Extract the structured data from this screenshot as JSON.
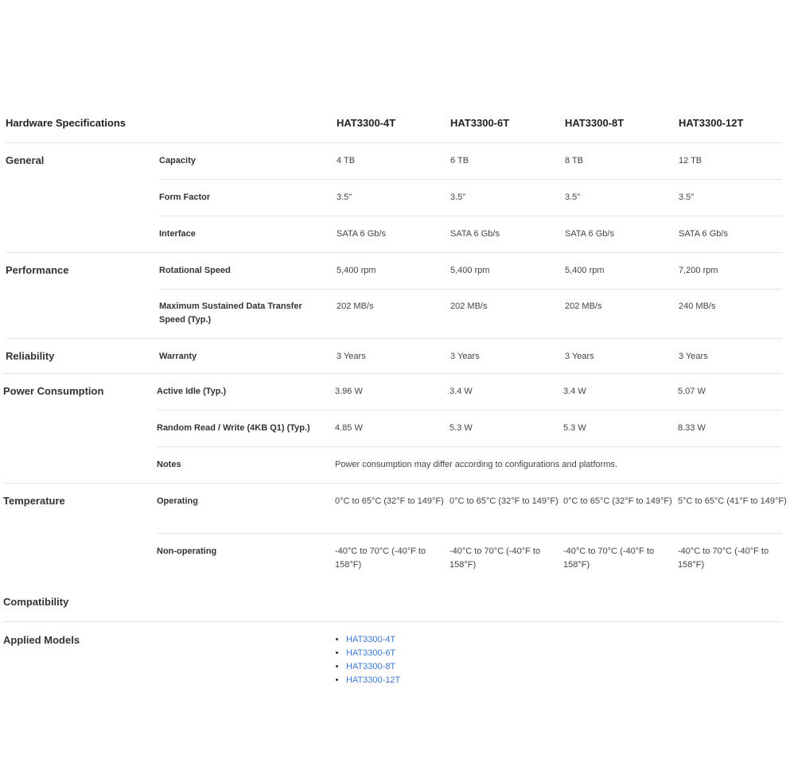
{
  "header": {
    "title": "Hardware Specifications",
    "models": [
      "HAT3300-4T",
      "HAT3300-6T",
      "HAT3300-8T",
      "HAT3300-12T"
    ]
  },
  "sections": [
    {
      "name": "General",
      "rows": [
        {
          "label": "Capacity",
          "values": [
            "4 TB",
            "6 TB",
            "8 TB",
            "12 TB"
          ]
        },
        {
          "label": "Form Factor",
          "values": [
            "3.5\"",
            "3.5\"",
            "3.5\"",
            "3.5\""
          ]
        },
        {
          "label": "Interface",
          "values": [
            "SATA 6 Gb/s",
            "SATA 6 Gb/s",
            "SATA 6 Gb/s",
            "SATA 6 Gb/s"
          ]
        }
      ]
    },
    {
      "name": "Performance",
      "rows": [
        {
          "label": "Rotational Speed",
          "values": [
            "5,400 rpm",
            "5,400 rpm",
            "5,400 rpm",
            "7,200 rpm"
          ]
        },
        {
          "label": "Maximum Sustained Data Transfer Speed (Typ.)",
          "values": [
            "202 MB/s",
            "202 MB/s",
            "202 MB/s",
            "240 MB/s"
          ]
        }
      ]
    },
    {
      "name": "Reliability",
      "rows": [
        {
          "label": "Warranty",
          "values": [
            "3 Years",
            "3 Years",
            "3 Years",
            "3 Years"
          ]
        }
      ]
    },
    {
      "name": "Power Consumption",
      "rows": [
        {
          "label": "Active Idle (Typ.)",
          "values": [
            "3.96 W",
            "3.4 W",
            "3.4 W",
            "5.07 W"
          ]
        },
        {
          "label": "Random Read / Write (4KB Q1) (Typ.)",
          "values": [
            "4.85 W",
            "5.3 W",
            "5.3 W",
            "8.33 W"
          ]
        },
        {
          "label": "Notes",
          "note": "Power consumption may differ according to configurations and platforms."
        }
      ]
    },
    {
      "name": "Temperature",
      "rows": [
        {
          "label": "Operating",
          "values": [
            "0°C to 65°C (32°F to 149°F)",
            "0°C to 65°C (32°F to 149°F)",
            "0°C to 65°C (32°F to 149°F)",
            "5°C to 65°C (41°F to 149°F)"
          ]
        },
        {
          "label": "Non-operating",
          "values": [
            "-40°C to 70°C (-40°F to 158°F)",
            "-40°C to 70°C (-40°F to 158°F)",
            "-40°C to 70°C (-40°F to 158°F)",
            "-40°C to 70°C (-40°F to 158°F)"
          ]
        }
      ]
    }
  ],
  "compatibility": {
    "title": "Compatibility",
    "label": "Applied Models",
    "models": [
      "HAT3300-4T",
      "HAT3300-6T",
      "HAT3300-8T",
      "HAT3300-12T"
    ]
  }
}
